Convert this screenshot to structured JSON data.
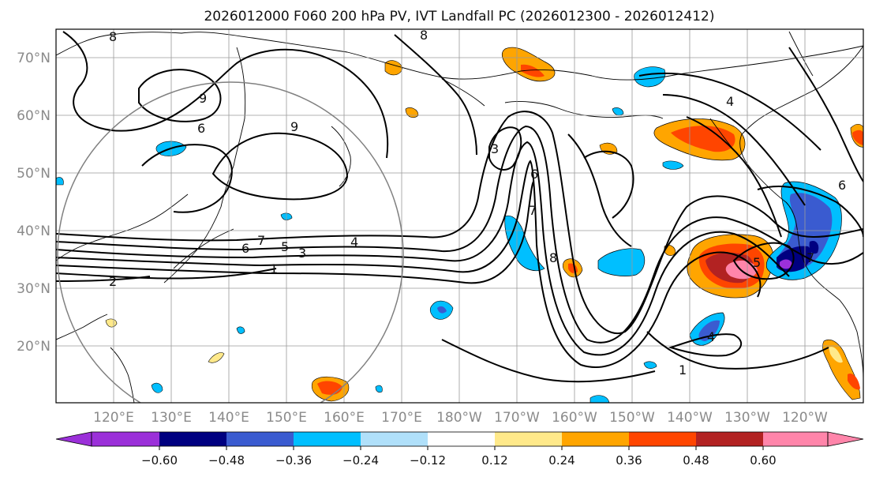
{
  "title": "2026012000 F060 200 hPa PV, IVT Landfall PC (2026012300 - 2026012412)",
  "map": {
    "lat_labels": [
      "70°N",
      "60°N",
      "50°N",
      "40°N",
      "30°N",
      "20°N"
    ],
    "lon_labels": [
      "120°E",
      "130°E",
      "140°E",
      "150°E",
      "160°E",
      "170°E",
      "180°W",
      "170°W",
      "160°W",
      "150°W",
      "140°W",
      "130°W",
      "120°W"
    ],
    "contour_labels": [
      "1",
      "2",
      "3",
      "4",
      "5",
      "6",
      "7",
      "8",
      "9",
      "1",
      "4",
      "5",
      "6",
      "7",
      "8",
      "9",
      "3",
      "6",
      "7",
      "8",
      "6",
      "4"
    ]
  },
  "colorbar": {
    "ticks": [
      "−0.60",
      "−0.48",
      "−0.36",
      "−0.24",
      "−0.12",
      "0.12",
      "0.24",
      "0.36",
      "0.48",
      "0.60"
    ],
    "colors": [
      "#9b30d9",
      "#000080",
      "#3a5bd0",
      "#00bfff",
      "#b0e0fa",
      "#ffffff",
      "#ffe98a",
      "#ffa500",
      "#ff4500",
      "#b22222",
      "#ff85aa",
      "#ff85aa"
    ]
  }
}
